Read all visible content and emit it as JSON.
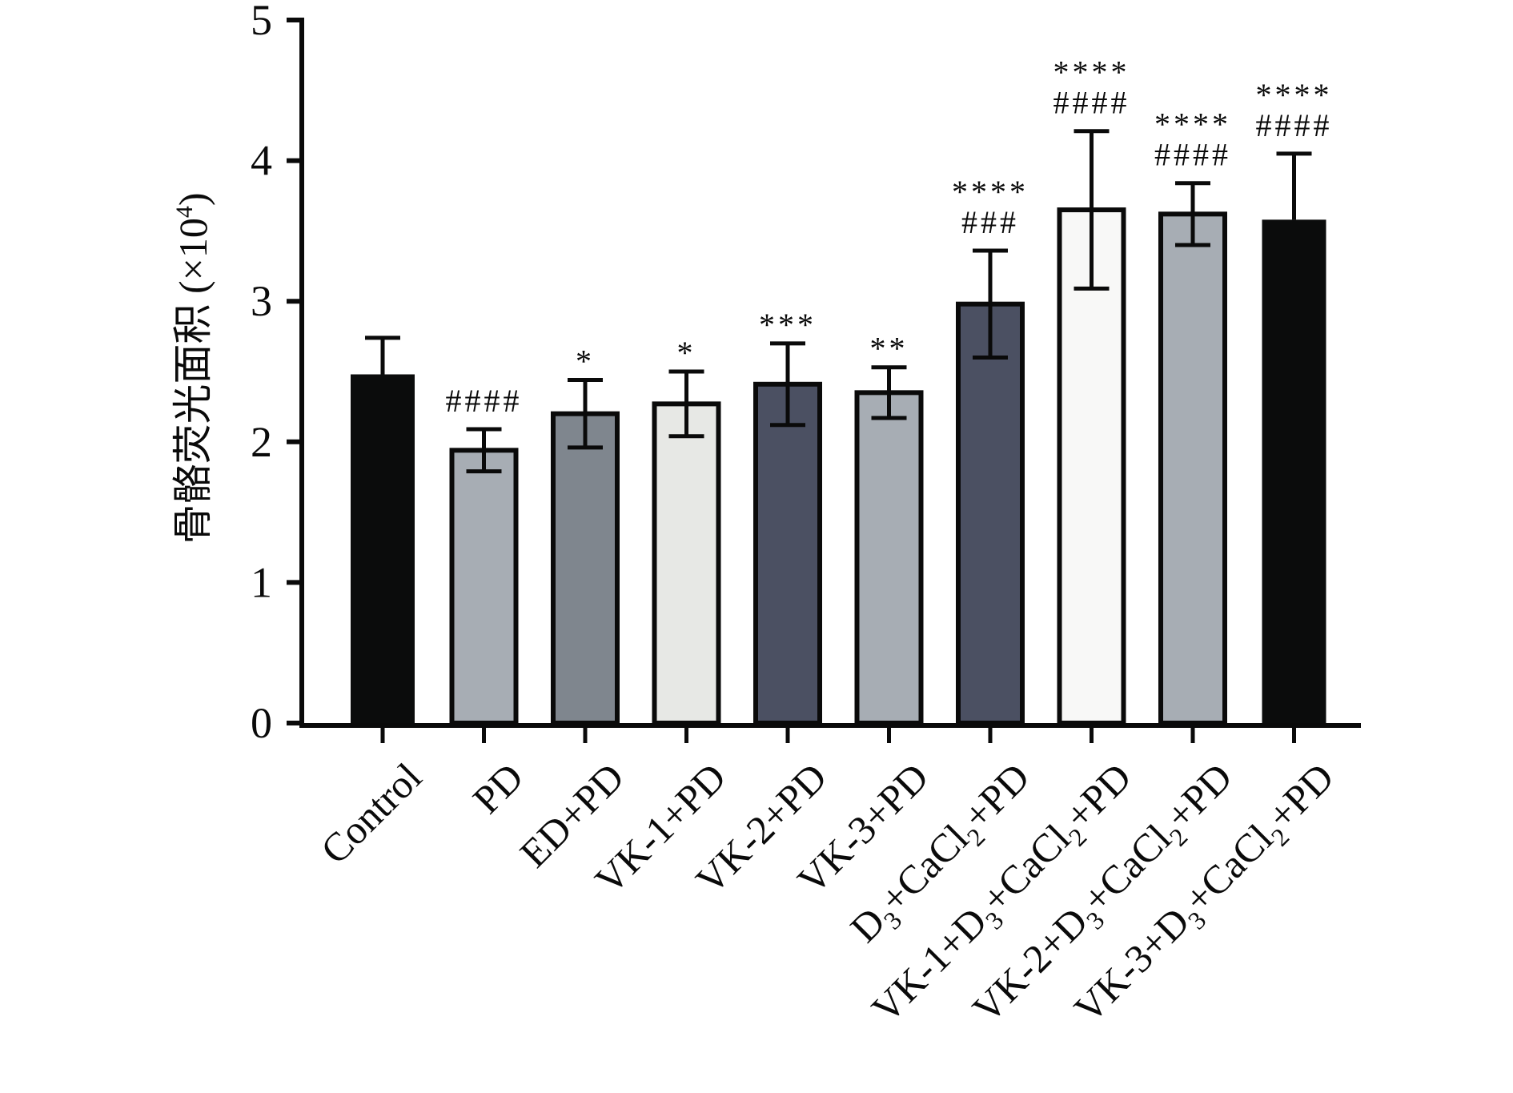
{
  "chart_data": {
    "type": "bar",
    "title": "",
    "xlabel": "",
    "ylabel": "骨骼荧光面积 (×10⁴)",
    "ylabel_parts": {
      "main": "骨骼荧光面积 (×10",
      "sup": "4",
      "end": ")"
    },
    "ylim": [
      0,
      5
    ],
    "yticks": [
      0,
      1,
      2,
      3,
      4,
      5
    ],
    "grid": false,
    "legend": "none",
    "categories": [
      "Control",
      "PD",
      "ED+PD",
      "VK-1+PD",
      "VK-2+PD",
      "VK-3+PD",
      "D3+CaCl2+PD",
      "VK-1+D3+CaCl2+PD",
      "VK-2+D3+CaCl2+PD",
      "VK-3+D3+CaCl2+PD"
    ],
    "category_labels_rich": [
      [
        {
          "t": "Control"
        }
      ],
      [
        {
          "t": "PD"
        }
      ],
      [
        {
          "t": "ED+PD"
        }
      ],
      [
        {
          "t": "VK-1+PD"
        }
      ],
      [
        {
          "t": "VK-2+PD"
        }
      ],
      [
        {
          "t": "VK-3+PD"
        }
      ],
      [
        {
          "t": "D"
        },
        {
          "t": "3",
          "sub": true
        },
        {
          "t": "+CaCl"
        },
        {
          "t": "2",
          "sub": true
        },
        {
          "t": "+PD"
        }
      ],
      [
        {
          "t": "VK-1+D"
        },
        {
          "t": "3",
          "sub": true
        },
        {
          "t": "+CaCl"
        },
        {
          "t": "2",
          "sub": true
        },
        {
          "t": "+PD"
        }
      ],
      [
        {
          "t": "VK-2+D"
        },
        {
          "t": "3",
          "sub": true
        },
        {
          "t": "+CaCl"
        },
        {
          "t": "2",
          "sub": true
        },
        {
          "t": "+PD"
        }
      ],
      [
        {
          "t": "VK-3+D"
        },
        {
          "t": "3",
          "sub": true
        },
        {
          "t": "+CaCl"
        },
        {
          "t": "2",
          "sub": true
        },
        {
          "t": "+PD"
        }
      ]
    ],
    "values": [
      2.48,
      1.94,
      2.2,
      2.27,
      2.41,
      2.35,
      2.98,
      3.65,
      3.62,
      3.58
    ],
    "errors": [
      0.26,
      0.15,
      0.24,
      0.23,
      0.29,
      0.18,
      0.38,
      0.56,
      0.22,
      0.47
    ],
    "error_style": [
      "upper",
      "both",
      "both",
      "both",
      "both",
      "both",
      "both",
      "both",
      "both",
      "upper"
    ],
    "fill_colors": [
      "#0b0c0c",
      "#a7adb4",
      "#7f868e",
      "#e7e8e5",
      "#4b5062",
      "#a7adb4",
      "#4b5062",
      "#f8f8f7",
      "#a7adb4",
      "#0b0c0c"
    ],
    "outlined": [
      false,
      true,
      true,
      true,
      true,
      true,
      true,
      true,
      true,
      false
    ],
    "annotations": [
      {
        "stars": "",
        "hashes": ""
      },
      {
        "stars": "",
        "hashes": "####"
      },
      {
        "stars": "*",
        "hashes": ""
      },
      {
        "stars": "*",
        "hashes": ""
      },
      {
        "stars": "***",
        "hashes": ""
      },
      {
        "stars": "**",
        "hashes": ""
      },
      {
        "stars": "****",
        "hashes": "###"
      },
      {
        "stars": "****",
        "hashes": "####"
      },
      {
        "stars": "****",
        "hashes": "####"
      },
      {
        "stars": "****",
        "hashes": "####"
      }
    ]
  }
}
